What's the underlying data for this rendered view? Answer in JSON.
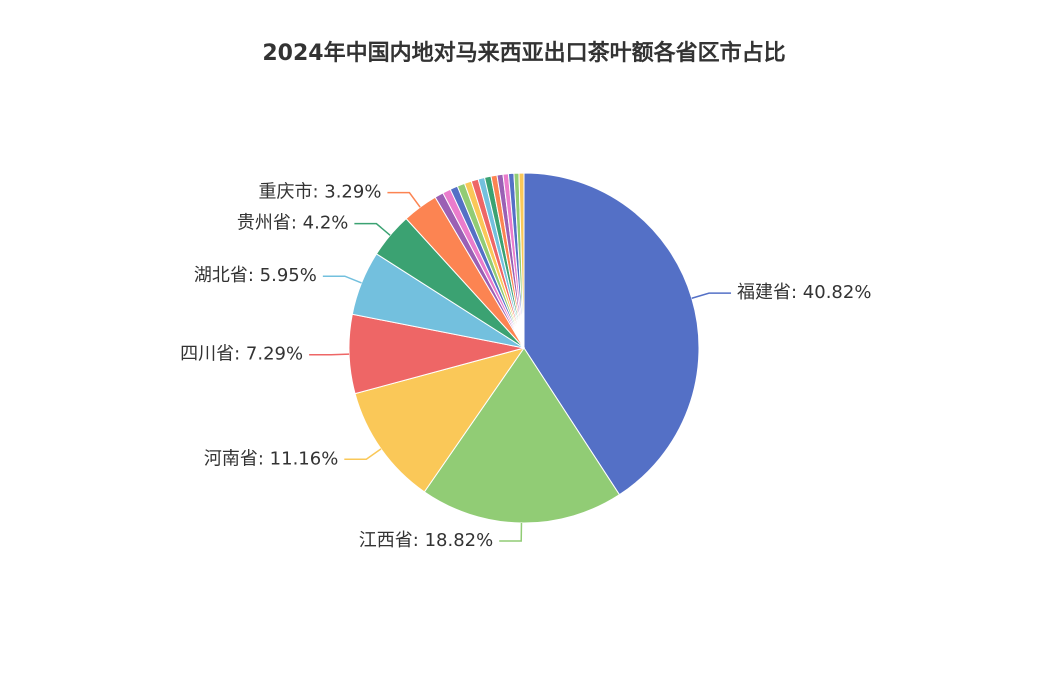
{
  "chart_data": {
    "type": "pie",
    "title": "2024年中国内地对马来西亚出口茶叶额各省区市占比",
    "values": [
      40.82,
      18.82,
      11.16,
      7.29,
      5.95,
      4.2,
      3.29,
      0.8,
      0.75,
      0.7,
      0.7,
      0.65,
      0.65,
      0.6,
      0.6,
      0.55,
      0.55,
      0.5,
      0.5,
      0.46,
      0.46
    ],
    "value_labels": [
      "福建省: 40.82%",
      "江西省: 18.82%",
      "河南省: 11.16%",
      "四川省: 7.29%",
      "湖北省: 5.95%",
      "贵州省: 4.2%",
      "重庆市: 3.29%",
      null,
      null,
      null,
      null,
      null,
      null,
      null,
      null,
      null,
      null,
      null,
      null,
      null,
      null
    ],
    "colors": [
      "#5470c6",
      "#91cc75",
      "#fac858",
      "#ee6666",
      "#73c0de",
      "#3ba272",
      "#fc8452",
      "#9a60b4",
      "#ea7ccc"
    ]
  }
}
